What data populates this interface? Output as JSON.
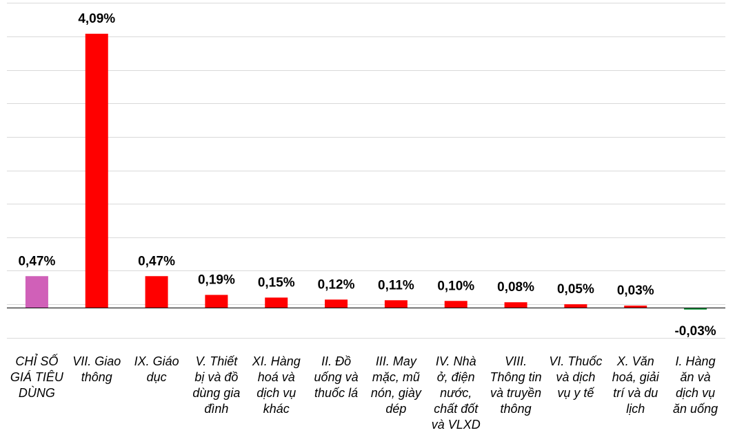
{
  "chart_data": {
    "type": "bar",
    "title": "",
    "xlabel": "",
    "ylabel": "",
    "ylim": [
      -0.45,
      4.55
    ],
    "grid": true,
    "categories": [
      [
        "CHỈ SỐ",
        "GIÁ TIÊU",
        "DÙNG"
      ],
      [
        "VII. Giao",
        "thông"
      ],
      [
        "IX. Giáo",
        "dục"
      ],
      [
        "V. Thiết",
        "bị và đồ",
        "dùng gia",
        "đình"
      ],
      [
        "XI. Hàng",
        "hoá và",
        "dịch vụ",
        "khác"
      ],
      [
        "II. Đồ",
        "uống và",
        "thuốc lá"
      ],
      [
        "III. May",
        "mặc, mũ",
        "nón, giày",
        "dép"
      ],
      [
        "IV. Nhà",
        "ở, điện",
        "nước,",
        "chất đốt",
        "và VLXD"
      ],
      [
        "VIII.",
        "Thông tin",
        "và truyền",
        "thông"
      ],
      [
        "VI. Thuốc",
        "và dịch",
        "vụ y tế"
      ],
      [
        "X. Văn",
        "hoá, giải",
        "trí và du",
        "lịch"
      ],
      [
        "I. Hàng",
        "ăn và",
        "dịch vụ",
        "ăn uống"
      ]
    ],
    "values": [
      0.47,
      4.09,
      0.47,
      0.19,
      0.15,
      0.12,
      0.11,
      0.1,
      0.08,
      0.05,
      0.03,
      -0.03
    ],
    "labels": [
      "0,47%",
      "4,09%",
      "0,47%",
      "0,19%",
      "0,15%",
      "0,12%",
      "0,11%",
      "0,10%",
      "0,08%",
      "0,05%",
      "0,03%",
      "-0,03%"
    ],
    "colors": {
      "index": "#d060b8",
      "positive": "#ff0000",
      "negative": "#1a9641",
      "grid": "#d9d9d9",
      "axis": "#000000"
    }
  }
}
